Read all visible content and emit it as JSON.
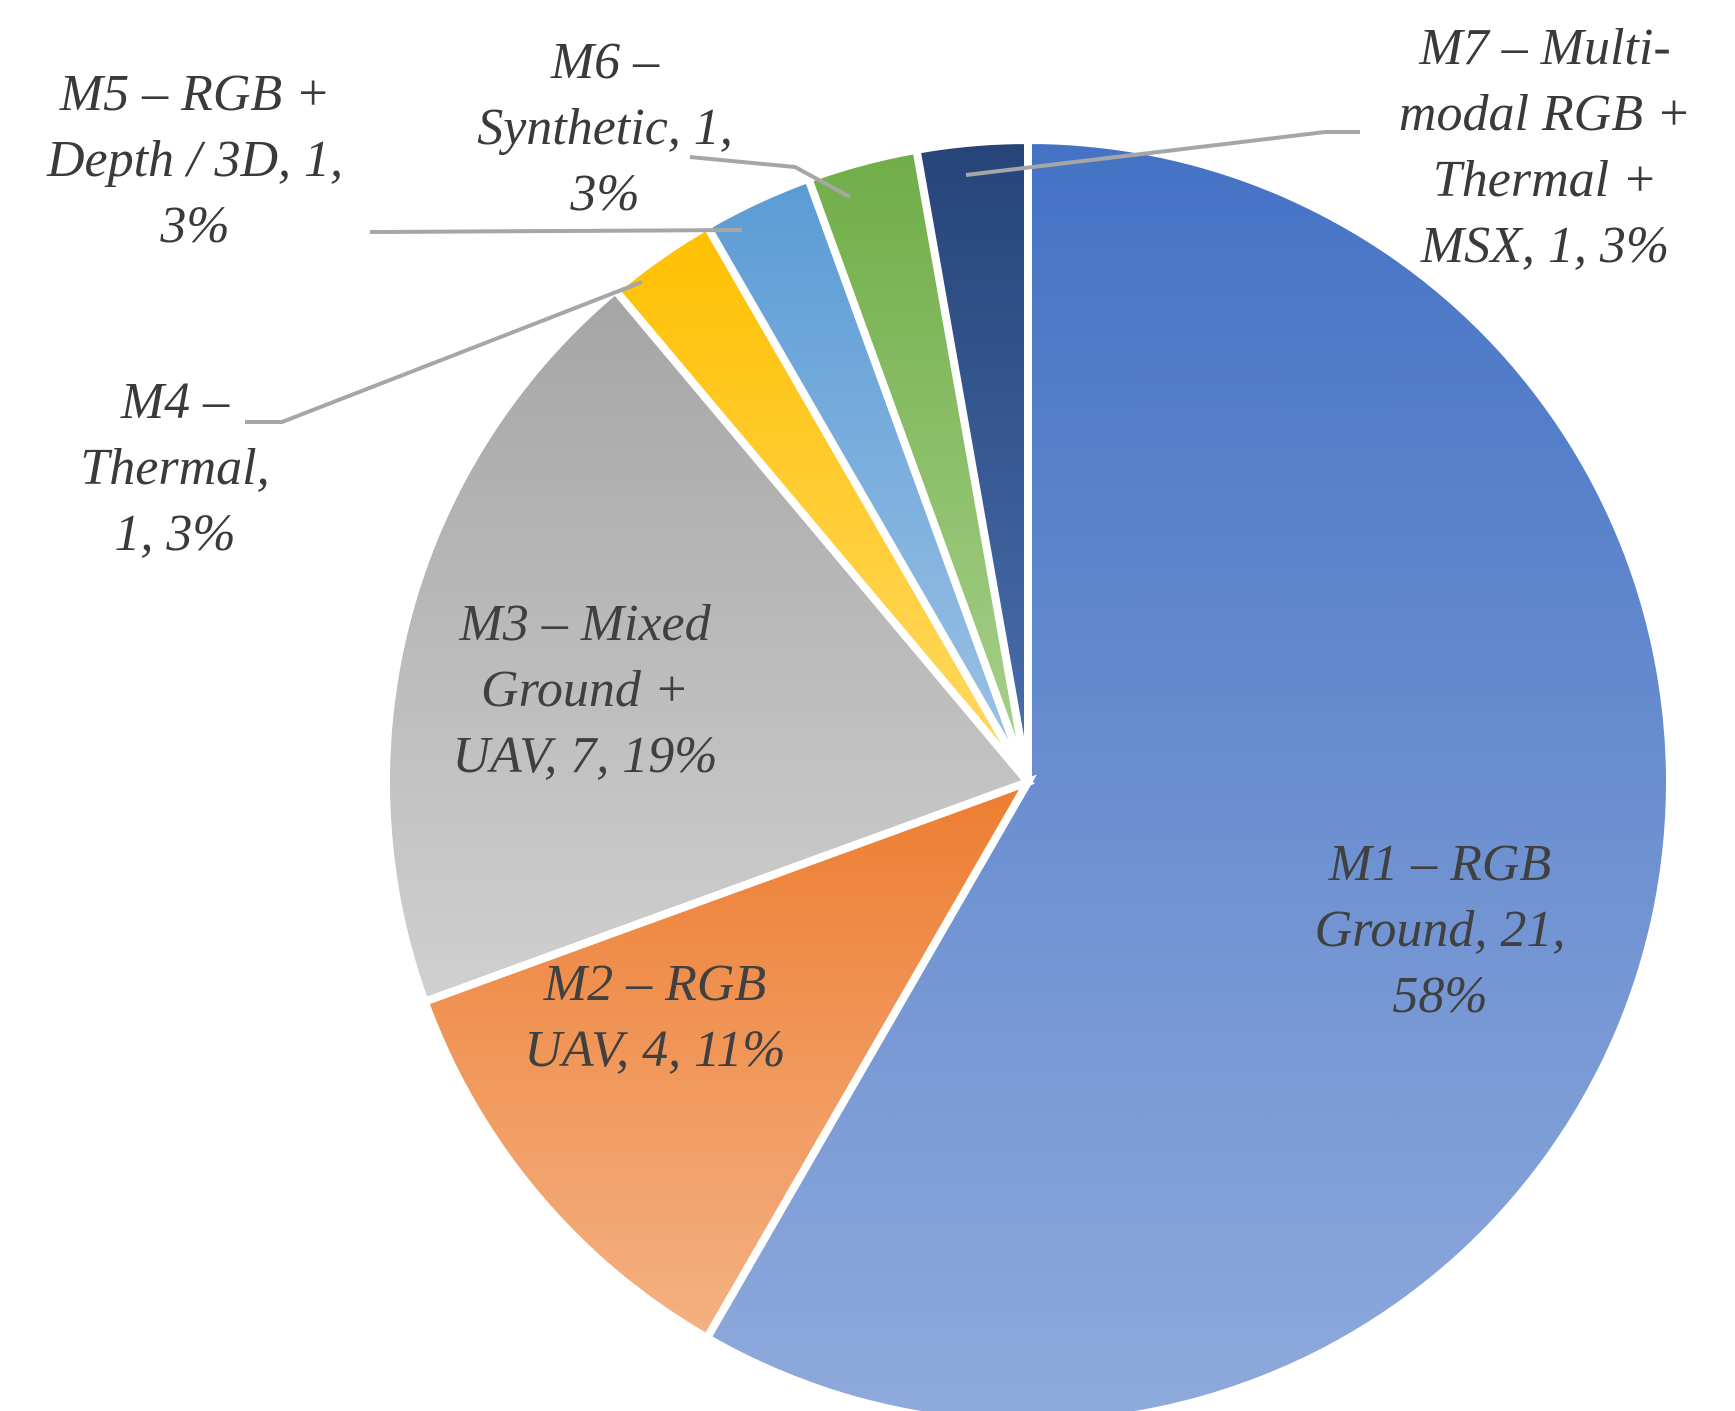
{
  "chart_data": {
    "type": "pie",
    "title": "",
    "series": [
      {
        "slices": [
          {
            "name": "M1 – RGB Ground",
            "value": 21,
            "percent": "58%",
            "label_lines": [
              "M1 – RGB",
              "Ground, 21,",
              "58%"
            ],
            "color_top": "#4472c4",
            "color_bottom": "#8faadc"
          },
          {
            "name": "M2 – RGB UAV",
            "value": 4,
            "percent": "11%",
            "label_lines": [
              "M2 – RGB",
              "UAV, 4, 11%"
            ],
            "color_top": "#ed7d31",
            "color_bottom": "#f4b183"
          },
          {
            "name": "M3 – Mixed Ground + UAV",
            "value": 7,
            "percent": "19%",
            "label_lines": [
              "M3 – Mixed",
              "Ground +",
              "UAV, 7, 19%"
            ],
            "color_top": "#a5a5a5",
            "color_bottom": "#d0d0d0"
          },
          {
            "name": "M4 – Thermal",
            "value": 1,
            "percent": "3%",
            "label_lines": [
              "M4 –",
              "Thermal,",
              "1, 3%"
            ],
            "color_top": "#ffc000",
            "color_bottom": "#ffd966"
          },
          {
            "name": "M5 – RGB + Depth / 3D",
            "value": 1,
            "percent": "3%",
            "label_lines": [
              "M5 – RGB +",
              "Depth / 3D, 1,",
              "3%"
            ],
            "color_top": "#5b9bd5",
            "color_bottom": "#9dc3e6"
          },
          {
            "name": "M6 – Synthetic",
            "value": 1,
            "percent": "3%",
            "label_lines": [
              "M6 –",
              "Synthetic, 1,",
              "3%"
            ],
            "color_top": "#70ad47",
            "color_bottom": "#a9d18e"
          },
          {
            "name": "M7 – Multi-modal RGB + Thermal + MSX",
            "value": 1,
            "percent": "3%",
            "label_lines": [
              "M7 – Multi-",
              "modal RGB +",
              "Thermal +",
              "MSX, 1, 3%"
            ],
            "color_top": "#264478",
            "color_bottom": "#4a6fae"
          }
        ]
      }
    ],
    "start_angle_deg": 0,
    "direction": "clockwise",
    "legend": "none",
    "data_labels": "category name, value, percentage"
  }
}
